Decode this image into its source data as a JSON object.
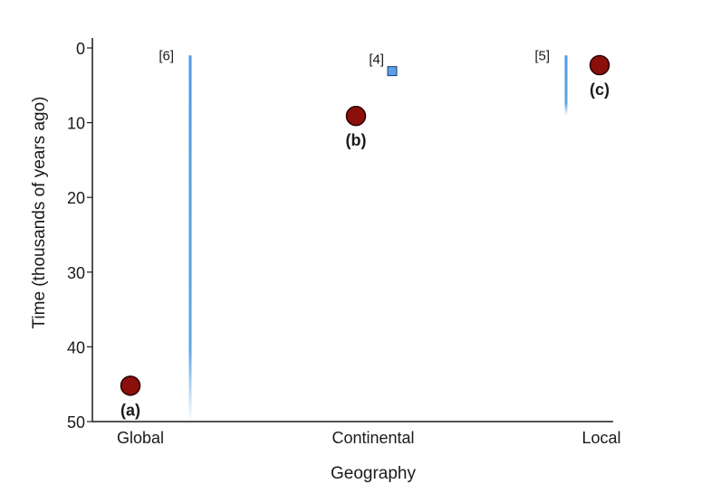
{
  "chart_data": {
    "type": "scatter",
    "xlabel": "Geography",
    "ylabel": "Time (thousands of years ago)",
    "categories": [
      "Global",
      "Continental",
      "Local"
    ],
    "ylim": [
      0,
      50
    ],
    "y_inverted": true,
    "yticks": [
      0,
      10,
      20,
      30,
      40,
      50
    ],
    "grid": false,
    "points": [
      {
        "label": "(a)",
        "x": "Global",
        "y": 45.2
      },
      {
        "label": "(b)",
        "x": "Continental",
        "y": 9.1
      },
      {
        "label": "(c)",
        "x": "Local",
        "y": 2.3
      }
    ],
    "references": [
      {
        "label": "[6]",
        "x": "Global",
        "y_start": 1,
        "y_end": 50,
        "style": "fading-bar"
      },
      {
        "label": "[4]",
        "x": "Continental",
        "y": 3.1,
        "style": "square"
      },
      {
        "label": "[5]",
        "x": "Local",
        "y_start": 1,
        "y_end": 9,
        "style": "fading-bar"
      }
    ],
    "colors": {
      "point_fill": "#8b0f0a",
      "point_stroke": "#2a0000",
      "reference_bar": "#4a9be0",
      "reference_square_fill": "#5a9fe8",
      "reference_square_stroke": "#1d3c73",
      "axis": "#1a1a1a"
    }
  }
}
